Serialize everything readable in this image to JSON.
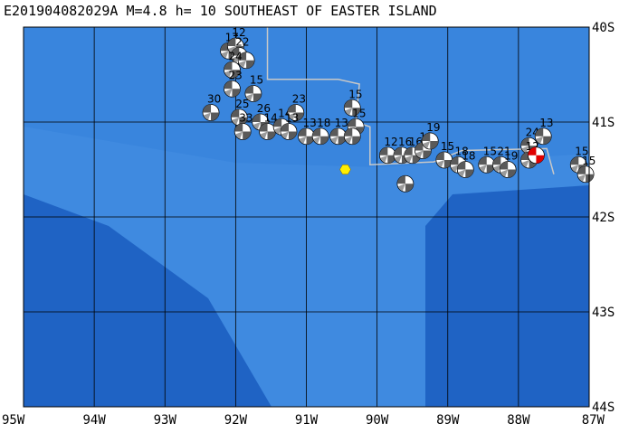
{
  "title": "E201904082029A M=4.8 h= 10 SOUTHEAST OF EASTER ISLAND",
  "map": {
    "lon_range": [
      -95,
      -87
    ],
    "lat_range": [
      -44,
      -40
    ],
    "lon_ticks": [
      {
        "value": -95,
        "label": "95W"
      },
      {
        "value": -94,
        "label": "94W"
      },
      {
        "value": -93,
        "label": "93W"
      },
      {
        "value": -92,
        "label": "92W"
      },
      {
        "value": -91,
        "label": "91W"
      },
      {
        "value": -90,
        "label": "90W"
      },
      {
        "value": -89,
        "label": "89W"
      },
      {
        "value": -88,
        "label": "88W"
      },
      {
        "value": -87,
        "label": "87W"
      }
    ],
    "lat_ticks": [
      {
        "value": -40,
        "label": "40S"
      },
      {
        "value": -41,
        "label": "41S"
      },
      {
        "value": -42,
        "label": "42S"
      },
      {
        "value": -43,
        "label": "43S"
      },
      {
        "value": -44,
        "label": "44S"
      }
    ],
    "colors": {
      "ocean_deep": "#1f63c4",
      "ocean_mid": "#2f7ad6",
      "ridge_shallow": "#3f8ae0",
      "grid": "#000000",
      "plate_boundary": "#c8c8c8",
      "epicenter": "#ffee00",
      "highlight_mechanism": "#e00000"
    },
    "epicenter": {
      "lon": -90.45,
      "lat": -41.5
    },
    "plate_boundary": [
      [
        -91.55,
        -40.0
      ],
      [
        -91.55,
        -40.25
      ],
      [
        -91.55,
        -40.4
      ],
      [
        -91.55,
        -40.55
      ],
      [
        -90.55,
        -40.55
      ],
      [
        -90.25,
        -40.6
      ],
      [
        -90.3,
        -41.0
      ],
      [
        -90.1,
        -41.05
      ],
      [
        -90.1,
        -41.45
      ],
      [
        -89.2,
        -41.42
      ],
      [
        -88.8,
        -41.3
      ],
      [
        -87.6,
        -41.28
      ],
      [
        -87.5,
        -41.55
      ]
    ],
    "events": [
      {
        "lon": -92.1,
        "lat": -40.25,
        "label": "17"
      },
      {
        "lon": -92.0,
        "lat": -40.2,
        "label": "12"
      },
      {
        "lon": -91.95,
        "lat": -40.3,
        "label": "22"
      },
      {
        "lon": -91.85,
        "lat": -40.35,
        "label": ""
      },
      {
        "lon": -92.05,
        "lat": -40.45,
        "label": "24"
      },
      {
        "lon": -92.05,
        "lat": -40.65,
        "label": "23"
      },
      {
        "lon": -91.75,
        "lat": -40.7,
        "label": "15"
      },
      {
        "lon": -92.35,
        "lat": -40.9,
        "label": "30"
      },
      {
        "lon": -91.95,
        "lat": -40.95,
        "label": "25"
      },
      {
        "lon": -91.9,
        "lat": -41.1,
        "label": "33"
      },
      {
        "lon": -91.65,
        "lat": -41.0,
        "label": "26"
      },
      {
        "lon": -91.55,
        "lat": -41.1,
        "label": "14"
      },
      {
        "lon": -91.35,
        "lat": -41.05,
        "label": "14"
      },
      {
        "lon": -91.15,
        "lat": -40.9,
        "label": "23"
      },
      {
        "lon": -91.25,
        "lat": -41.1,
        "label": "13"
      },
      {
        "lon": -91.0,
        "lat": -41.15,
        "label": "13"
      },
      {
        "lon": -90.8,
        "lat": -41.15,
        "label": "18"
      },
      {
        "lon": -90.55,
        "lat": -41.15,
        "label": "13"
      },
      {
        "lon": -90.35,
        "lat": -40.85,
        "label": "15"
      },
      {
        "lon": -90.3,
        "lat": -41.05,
        "label": "15"
      },
      {
        "lon": -90.35,
        "lat": -41.15,
        "label": ""
      },
      {
        "lon": -89.85,
        "lat": -41.35,
        "label": "12"
      },
      {
        "lon": -89.65,
        "lat": -41.35,
        "label": "16"
      },
      {
        "lon": -89.5,
        "lat": -41.35,
        "label": "16"
      },
      {
        "lon": -89.35,
        "lat": -41.3,
        "label": "18"
      },
      {
        "lon": -89.6,
        "lat": -41.65,
        "label": ""
      },
      {
        "lon": -89.25,
        "lat": -41.2,
        "label": "19"
      },
      {
        "lon": -89.05,
        "lat": -41.4,
        "label": "15"
      },
      {
        "lon": -88.85,
        "lat": -41.45,
        "label": "18"
      },
      {
        "lon": -88.75,
        "lat": -41.5,
        "label": "18"
      },
      {
        "lon": -88.45,
        "lat": -41.45,
        "label": "15"
      },
      {
        "lon": -88.25,
        "lat": -41.45,
        "label": "21"
      },
      {
        "lon": -88.15,
        "lat": -41.5,
        "label": "19"
      },
      {
        "lon": -87.85,
        "lat": -41.25,
        "label": "24"
      },
      {
        "lon": -87.65,
        "lat": -41.15,
        "label": "13"
      },
      {
        "lon": -87.85,
        "lat": -41.4,
        "label": "12"
      },
      {
        "lon": -87.75,
        "lat": -41.35,
        "label": "",
        "highlight": true
      },
      {
        "lon": -87.15,
        "lat": -41.45,
        "label": "15"
      },
      {
        "lon": -87.05,
        "lat": -41.55,
        "label": "15"
      }
    ]
  }
}
